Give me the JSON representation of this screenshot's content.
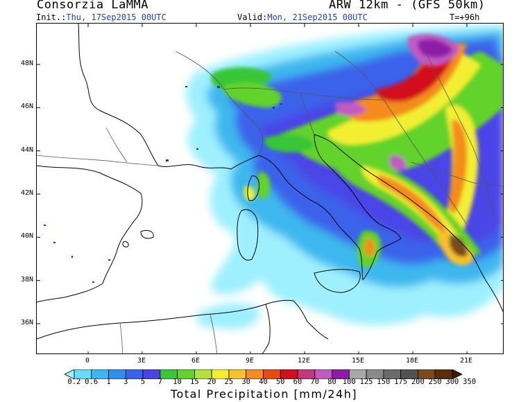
{
  "header": {
    "model_org": "Consorzia LaMMA",
    "model_name": "ARW 12km - (GFS 50km)",
    "init_prefix": "Init.:",
    "init_time": "Thu, 17Sep2015 00UTC",
    "valid_prefix": "Valid:",
    "valid_time": "Mon, 21Sep2015 00UTC",
    "forecast_hour": "T=+96h"
  },
  "map": {
    "lat_labels": [
      "48N",
      "46N",
      "44N",
      "42N",
      "40N",
      "38N",
      "36N"
    ],
    "lat_values": [
      48,
      46,
      44,
      42,
      40,
      38,
      36
    ],
    "lon_labels": [
      "0",
      "3E",
      "6E",
      "9E",
      "12E",
      "15E",
      "18E",
      "21E"
    ],
    "lon_values": [
      0,
      3,
      6,
      9,
      12,
      15,
      18,
      21
    ]
  },
  "colorbar": {
    "title": "Total Precipitation [mm/24h]",
    "levels": [
      "0.2",
      "0.6",
      "1",
      "3",
      "5",
      "7",
      "10",
      "15",
      "20",
      "25",
      "30",
      "40",
      "50",
      "60",
      "70",
      "80",
      "100",
      "125",
      "150",
      "175",
      "200",
      "250",
      "300",
      "350"
    ],
    "colors": [
      "#9ef0ff",
      "#67dcf6",
      "#3cb8ee",
      "#2f8ef0",
      "#3a62ea",
      "#4a44e6",
      "#39c639",
      "#62d32c",
      "#b3e23a",
      "#f2ef33",
      "#f5c22b",
      "#f48c1f",
      "#e84a14",
      "#d2101c",
      "#c4387c",
      "#c05cc0",
      "#8f1aa8",
      "#a8a8a8",
      "#8a8a8a",
      "#6b6b6b",
      "#525252",
      "#7a4a1a",
      "#5a2e08",
      "#3e1c00"
    ]
  },
  "colors": {
    "text_blue": "#1f3fd6",
    "coast": "#000000",
    "border": "#555555",
    "lakes": "#1a2fe0"
  }
}
